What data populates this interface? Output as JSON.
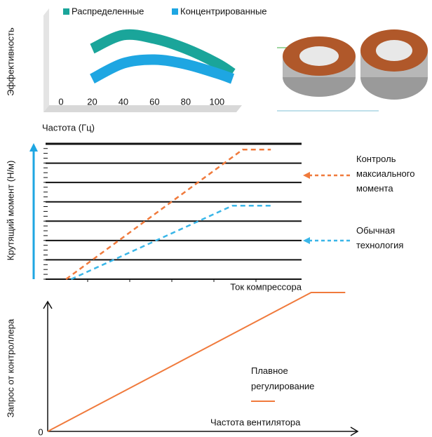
{
  "chart_data": [
    {
      "type": "ribbon",
      "x_label": "Частота (Гц)",
      "y_label": "Эффективность",
      "x": [
        20,
        40,
        60,
        80,
        100,
        110
      ],
      "xlim": [
        0,
        112
      ],
      "xticks": [
        0,
        20,
        40,
        60,
        80,
        100
      ],
      "ylim": [
        0,
        100
      ],
      "series": [
        {
          "name": "Распределенные",
          "color": "#1aa59a",
          "values": [
            62,
            77,
            73,
            62,
            46,
            35
          ]
        },
        {
          "name": "Концентрированные",
          "color": "#1ea6e2",
          "values": [
            29,
            46,
            50,
            45,
            35,
            29
          ]
        }
      ]
    },
    {
      "type": "line",
      "x_label": "Ток компрессора",
      "y_label": "Крутящий момент (Н/м)",
      "xlim": [
        0,
        100
      ],
      "ylim": [
        0,
        7
      ],
      "series": [
        {
          "name": "Контроль максиального момента",
          "color": "#f07a3c",
          "x": [
            8,
            77,
            88
          ],
          "values": [
            0,
            6.7,
            6.7
          ]
        },
        {
          "name": "Обычная технология",
          "color": "#3ab6e8",
          "x": [
            10,
            73,
            88
          ],
          "values": [
            0,
            3.8,
            3.8
          ]
        }
      ]
    },
    {
      "type": "line",
      "x_label": "Частота вентилятора",
      "y_label": "Запрос от контроллера",
      "xlim": [
        0,
        100
      ],
      "ylim": [
        0,
        100
      ],
      "xticks": [
        0
      ],
      "series": [
        {
          "name": "Плавное регулирование",
          "color": "#f07a3c",
          "x": [
            0,
            85,
            96
          ],
          "values": [
            0,
            100,
            100
          ]
        }
      ]
    }
  ]
}
